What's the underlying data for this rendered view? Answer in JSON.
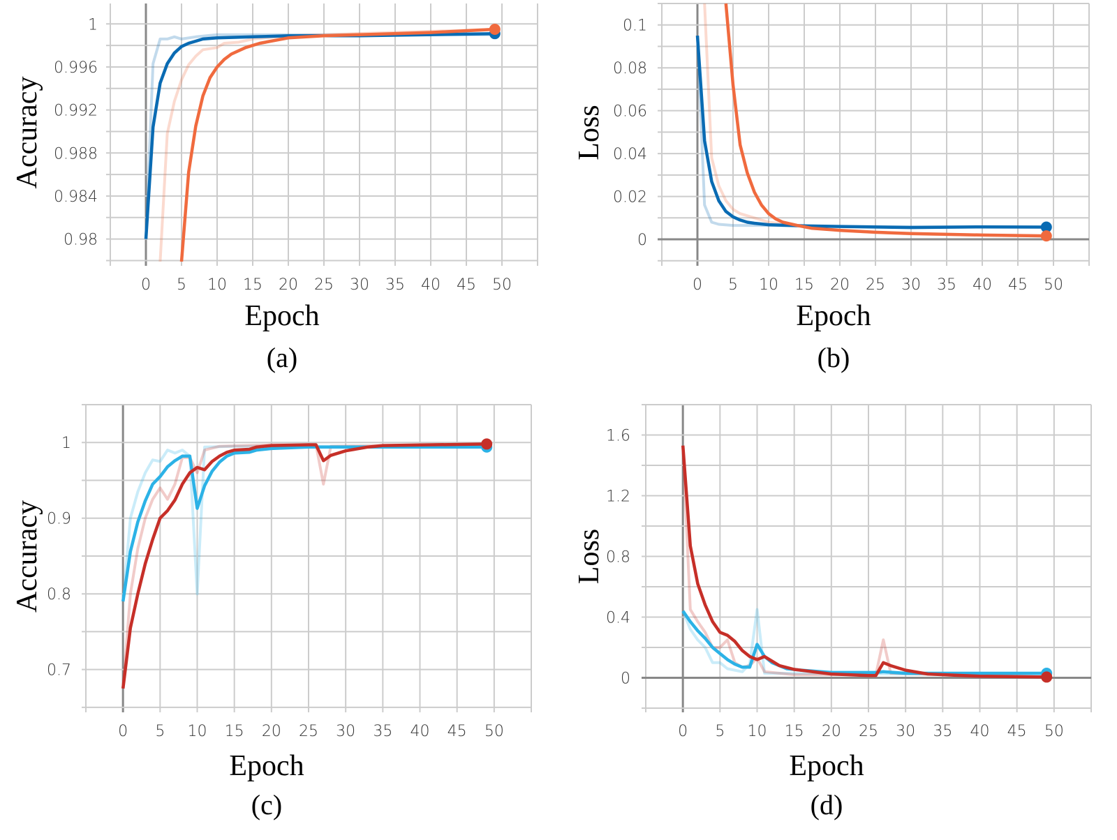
{
  "colors": {
    "a_smooth_1": "#0a6bb3",
    "a_smooth_2": "#f06a3e",
    "c_smooth_1": "#2cb2e6",
    "c_smooth_2": "#c62f28"
  },
  "chart_data": [
    {
      "type": "line",
      "caption": "(a)",
      "xlabel": "Epoch",
      "ylabel": "Accuracy",
      "xlim": [
        -5,
        55
      ],
      "ylim": [
        0.9779,
        1.0019
      ],
      "grid": true,
      "xticks": [
        0,
        5,
        10,
        15,
        20,
        25,
        30,
        35,
        40,
        45,
        50
      ],
      "yticks": [
        0.98,
        0.984,
        0.988,
        0.992,
        0.996,
        1
      ],
      "ytick_labels": [
        "0.98",
        "0.984",
        "0.988",
        "0.992",
        "0.996",
        "1"
      ],
      "series": [
        {
          "style": "raw",
          "color": "#0a6bb3",
          "x": [
            0,
            1,
            2,
            3,
            4,
            5,
            7,
            10,
            49
          ],
          "y": [
            0.98,
            0.9963,
            0.9986,
            0.9986,
            0.9988,
            0.9986,
            0.9988,
            0.999,
            0.999
          ]
        },
        {
          "style": "raw",
          "color": "#f06a3e",
          "x": [
            2,
            3,
            4,
            5,
            6,
            7,
            8,
            10,
            11,
            13,
            15,
            20,
            49
          ],
          "y": [
            0.9779,
            0.9898,
            0.9928,
            0.9948,
            0.9962,
            0.997,
            0.9976,
            0.9978,
            0.9982,
            0.9983,
            0.9986,
            0.9989,
            0.9995
          ]
        },
        {
          "style": "smooth",
          "color": "#0a6bb3",
          "x": [
            0,
            1,
            2,
            3,
            4,
            5,
            6,
            7,
            8,
            10,
            15,
            20,
            30,
            49
          ],
          "y": [
            0.98,
            0.9904,
            0.9945,
            0.9963,
            0.9973,
            0.9979,
            0.9982,
            0.9984,
            0.9986,
            0.9987,
            0.9988,
            0.9989,
            0.9989,
            0.9991
          ]
        },
        {
          "style": "smooth",
          "color": "#f06a3e",
          "x": [
            5,
            6,
            7,
            8,
            9,
            10,
            11,
            12,
            14,
            16,
            20,
            25,
            30,
            40,
            49
          ],
          "y": [
            0.9779,
            0.9862,
            0.9905,
            0.9933,
            0.995,
            0.996,
            0.9967,
            0.9972,
            0.9978,
            0.9982,
            0.9987,
            0.9989,
            0.999,
            0.9992,
            0.9995
          ]
        }
      ]
    },
    {
      "type": "line",
      "caption": "(b)",
      "xlabel": "Epoch",
      "ylabel": "Loss",
      "xlim": [
        -5,
        55
      ],
      "ylim": [
        -0.0104,
        0.11
      ],
      "grid": true,
      "xticks": [
        0,
        5,
        10,
        15,
        20,
        25,
        30,
        35,
        40,
        45,
        50
      ],
      "yticks": [
        0,
        0.02,
        0.04,
        0.06,
        0.08,
        0.1
      ],
      "ytick_labels": [
        "0",
        "0.02",
        "0.04",
        "0.06",
        "0.08",
        "0.1"
      ],
      "series": [
        {
          "style": "raw",
          "color": "#0a6bb3",
          "x": [
            0,
            1,
            2,
            3,
            5,
            10,
            20,
            49
          ],
          "y": [
            0.095,
            0.016,
            0.008,
            0.007,
            0.0065,
            0.0065,
            0.006,
            0.0057
          ]
        },
        {
          "style": "raw",
          "color": "#f06a3e",
          "x": [
            1,
            2,
            3,
            4,
            5,
            6,
            8,
            10,
            15,
            20,
            30,
            49
          ],
          "y": [
            0.11,
            0.038,
            0.025,
            0.018,
            0.014,
            0.012,
            0.01,
            0.008,
            0.006,
            0.004,
            0.0025,
            0.0015
          ]
        },
        {
          "style": "smooth",
          "color": "#0a6bb3",
          "x": [
            0,
            1,
            2,
            3,
            4,
            5,
            6,
            7,
            8,
            10,
            15,
            20,
            30,
            40,
            49
          ],
          "y": [
            0.095,
            0.046,
            0.027,
            0.018,
            0.013,
            0.0105,
            0.009,
            0.008,
            0.0075,
            0.0068,
            0.0063,
            0.006,
            0.0055,
            0.0058,
            0.0057
          ]
        },
        {
          "style": "smooth",
          "color": "#f06a3e",
          "x": [
            4,
            5,
            6,
            7,
            8,
            9,
            10,
            11,
            12,
            14,
            16,
            20,
            25,
            30,
            40,
            49
          ],
          "y": [
            0.11,
            0.072,
            0.044,
            0.031,
            0.022,
            0.016,
            0.012,
            0.0095,
            0.008,
            0.0065,
            0.0052,
            0.0042,
            0.0033,
            0.0027,
            0.002,
            0.0016
          ]
        }
      ]
    },
    {
      "type": "line",
      "caption": "(c)",
      "xlabel": "Epoch",
      "ylabel": "Accuracy",
      "xlim": [
        -5,
        55
      ],
      "ylim": [
        0.649,
        1.05
      ],
      "grid": true,
      "xticks": [
        0,
        5,
        10,
        15,
        20,
        25,
        30,
        35,
        40,
        45,
        50
      ],
      "yticks": [
        0.7,
        0.8,
        0.9,
        1
      ],
      "ytick_labels": [
        "0.7",
        "0.8",
        "0.9",
        "1"
      ],
      "series": [
        {
          "style": "raw",
          "color": "#2cb2e6",
          "x": [
            0,
            1,
            2,
            3,
            4,
            5,
            6,
            7,
            8,
            9,
            10,
            11,
            15,
            49
          ],
          "y": [
            0.79,
            0.9,
            0.935,
            0.96,
            0.977,
            0.975,
            0.99,
            0.986,
            0.99,
            0.982,
            0.8,
            0.994,
            0.995,
            0.995
          ]
        },
        {
          "style": "raw",
          "color": "#c62f28",
          "x": [
            0,
            1,
            2,
            3,
            4,
            5,
            6,
            7,
            8,
            9,
            10,
            11,
            13,
            20,
            26,
            27,
            28,
            49
          ],
          "y": [
            0.675,
            0.8,
            0.86,
            0.9,
            0.925,
            0.94,
            0.925,
            0.945,
            0.98,
            0.98,
            0.96,
            0.99,
            0.995,
            0.997,
            0.997,
            0.945,
            0.995,
            0.998
          ]
        },
        {
          "style": "smooth",
          "color": "#2cb2e6",
          "x": [
            0,
            1,
            2,
            3,
            4,
            5,
            6,
            7,
            8,
            9,
            10,
            11,
            12,
            13,
            14,
            15,
            17,
            18,
            20,
            25,
            30,
            49
          ],
          "y": [
            0.79,
            0.856,
            0.895,
            0.923,
            0.945,
            0.955,
            0.968,
            0.976,
            0.982,
            0.982,
            0.913,
            0.943,
            0.962,
            0.974,
            0.982,
            0.986,
            0.987,
            0.99,
            0.992,
            0.994,
            0.994,
            0.994
          ]
        },
        {
          "style": "smooth",
          "color": "#c62f28",
          "x": [
            0,
            1,
            2,
            3,
            4,
            5,
            6,
            7,
            8,
            9,
            10,
            11,
            12,
            13,
            14,
            15,
            17,
            18,
            20,
            25,
            26,
            27,
            28,
            30,
            33,
            35,
            49
          ],
          "y": [
            0.675,
            0.755,
            0.8,
            0.84,
            0.872,
            0.9,
            0.91,
            0.924,
            0.945,
            0.96,
            0.967,
            0.964,
            0.975,
            0.982,
            0.987,
            0.99,
            0.991,
            0.994,
            0.996,
            0.997,
            0.997,
            0.976,
            0.983,
            0.989,
            0.994,
            0.996,
            0.998
          ]
        }
      ]
    },
    {
      "type": "line",
      "caption": "(d)",
      "xlabel": "Epoch",
      "ylabel": "Loss",
      "xlim": [
        -5,
        55
      ],
      "ylim": [
        -0.2,
        1.8
      ],
      "grid": true,
      "xticks": [
        0,
        5,
        10,
        15,
        20,
        25,
        30,
        35,
        40,
        45,
        50
      ],
      "yticks": [
        0,
        0.4,
        0.8,
        1.2,
        1.6
      ],
      "ytick_labels": [
        "0",
        "0.4",
        "0.8",
        "1.2",
        "1.6"
      ],
      "series": [
        {
          "style": "raw",
          "color": "#2cb2e6",
          "x": [
            0,
            1,
            2,
            3,
            4,
            5,
            6,
            8,
            9,
            10,
            11,
            49
          ],
          "y": [
            0.44,
            0.32,
            0.25,
            0.2,
            0.1,
            0.1,
            0.06,
            0.04,
            0.09,
            0.45,
            0.03,
            0.02
          ]
        },
        {
          "style": "raw",
          "color": "#c62f28",
          "x": [
            0,
            1,
            2,
            3,
            4,
            5,
            6,
            7,
            8,
            9,
            10,
            11,
            15,
            26,
            27,
            28,
            49
          ],
          "y": [
            1.53,
            0.45,
            0.37,
            0.3,
            0.2,
            0.2,
            0.25,
            0.1,
            0.07,
            0.08,
            0.13,
            0.04,
            0.02,
            0.02,
            0.25,
            0.03,
            0.005
          ]
        },
        {
          "style": "smooth",
          "color": "#2cb2e6",
          "x": [
            0,
            1,
            2,
            3,
            4,
            5,
            6,
            7,
            8,
            9,
            10,
            11,
            12,
            14,
            16,
            20,
            26,
            27,
            30,
            49
          ],
          "y": [
            0.44,
            0.37,
            0.31,
            0.26,
            0.2,
            0.16,
            0.12,
            0.09,
            0.07,
            0.07,
            0.22,
            0.14,
            0.1,
            0.06,
            0.05,
            0.035,
            0.035,
            0.04,
            0.03,
            0.03
          ]
        },
        {
          "style": "smooth",
          "color": "#c62f28",
          "x": [
            0,
            1,
            2,
            3,
            4,
            5,
            6,
            7,
            8,
            9,
            10,
            11,
            12,
            13,
            15,
            20,
            25,
            26,
            27,
            28,
            30,
            33,
            40,
            49
          ],
          "y": [
            1.53,
            0.87,
            0.62,
            0.48,
            0.37,
            0.3,
            0.28,
            0.24,
            0.18,
            0.14,
            0.12,
            0.14,
            0.11,
            0.08,
            0.055,
            0.025,
            0.015,
            0.015,
            0.1,
            0.08,
            0.05,
            0.025,
            0.01,
            0.005
          ]
        }
      ]
    }
  ]
}
